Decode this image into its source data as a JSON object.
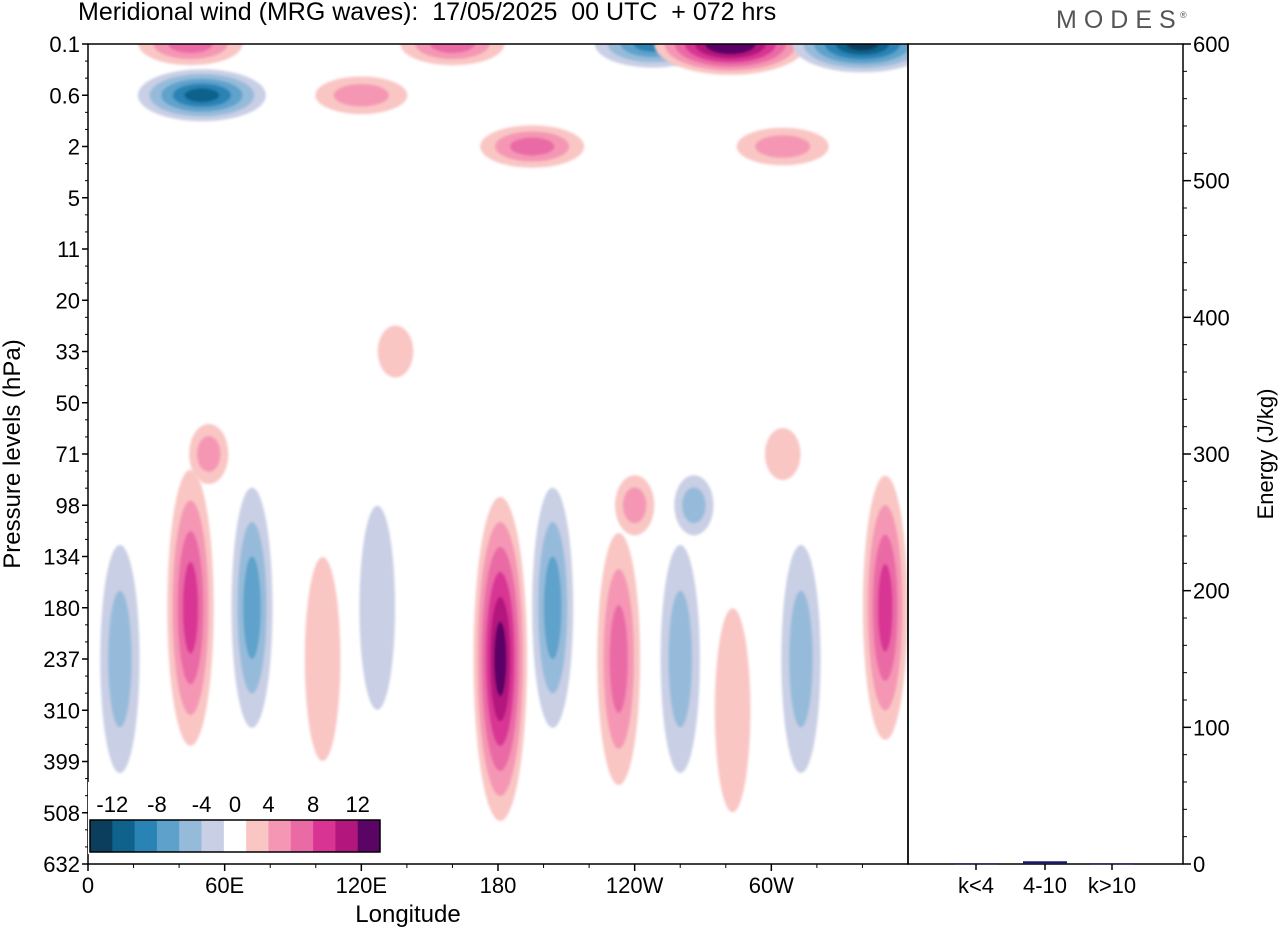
{
  "title": "Meridional wind (MRG waves):  17/05/2025  00 UTC  + 072 hrs",
  "logo": "MODES",
  "logo_mark": "®",
  "chart_data": [
    {
      "type": "heatmap",
      "title": "Meridional wind (MRG waves):  17/05/2025  00 UTC  + 072 hrs",
      "xlabel": "Longitude",
      "ylabel": "Pressure levels (hPa)",
      "x_ticks": [
        "0",
        "60E",
        "120E",
        "180",
        "120W",
        "60W"
      ],
      "x_tick_values": [
        0,
        60,
        120,
        180,
        240,
        300
      ],
      "xlim": [
        0,
        360
      ],
      "y_ticks": [
        "0.1",
        "0.6",
        "2",
        "5",
        "11",
        "20",
        "33",
        "50",
        "71",
        "98",
        "134",
        "180",
        "237",
        "310",
        "399",
        "508",
        "632"
      ],
      "colorbar": {
        "labels": [
          "-12",
          "-8",
          "-4",
          "0",
          "4",
          "8",
          "12"
        ],
        "levels": [
          -14,
          -12,
          -10,
          -8,
          -6,
          -4,
          -2,
          2,
          4,
          6,
          8,
          10,
          12,
          14
        ],
        "colors": [
          "#0b3d5c",
          "#0f628c",
          "#2a83b5",
          "#5ea2cc",
          "#96bbda",
          "#c9cfe5",
          "#ffffff",
          "#f9c6c4",
          "#f597b4",
          "#ea6aa6",
          "#d93494",
          "#b3177d",
          "#5a0566"
        ]
      },
      "features": [
        {
          "lon": 14,
          "level": "237",
          "value": -4
        },
        {
          "lon": 45,
          "level": "180",
          "value": 8
        },
        {
          "lon": 72,
          "level": "180",
          "value": -5
        },
        {
          "lon": 103,
          "level": "237",
          "value": 2
        },
        {
          "lon": 127,
          "level": "180",
          "value": -2
        },
        {
          "lon": 181,
          "level": "237",
          "value": 12
        },
        {
          "lon": 204,
          "level": "180",
          "value": -5
        },
        {
          "lon": 233,
          "level": "237",
          "value": 6
        },
        {
          "lon": 260,
          "level": "237",
          "value": -4
        },
        {
          "lon": 283,
          "level": "310",
          "value": 2
        },
        {
          "lon": 313,
          "level": "237",
          "value": -4
        },
        {
          "lon": 350,
          "level": "180",
          "value": 7
        },
        {
          "lon": 53,
          "level": "71",
          "value": 4
        },
        {
          "lon": 135,
          "level": "33",
          "value": 2
        },
        {
          "lon": 266,
          "level": "98",
          "value": -4
        },
        {
          "lon": 305,
          "level": "71",
          "value": 2
        },
        {
          "lon": 240,
          "level": "98",
          "value": 4
        },
        {
          "lon": 50,
          "level": "0.6",
          "value": -10
        },
        {
          "lon": 45,
          "level": "0.1",
          "value": 6
        },
        {
          "lon": 120,
          "level": "0.6",
          "value": 4
        },
        {
          "lon": 160,
          "level": "0.1",
          "value": 6
        },
        {
          "lon": 195,
          "level": "2",
          "value": 6
        },
        {
          "lon": 248,
          "level": "0.1",
          "value": -8
        },
        {
          "lon": 282,
          "level": "0.1",
          "value": 14
        },
        {
          "lon": 340,
          "level": "0.1",
          "value": -12
        },
        {
          "lon": 305,
          "level": "2",
          "value": 4
        }
      ]
    },
    {
      "type": "bar",
      "categories": [
        "k<4",
        "4-10",
        "k>10"
      ],
      "values": [
        0.5,
        2,
        0.5
      ],
      "ylabel": "Energy (J/kg)",
      "ylim": [
        0,
        600
      ],
      "y_ticks": [
        "0",
        "100",
        "200",
        "300",
        "400",
        "500",
        "600"
      ],
      "bar_color": "#1a1a5e"
    }
  ]
}
